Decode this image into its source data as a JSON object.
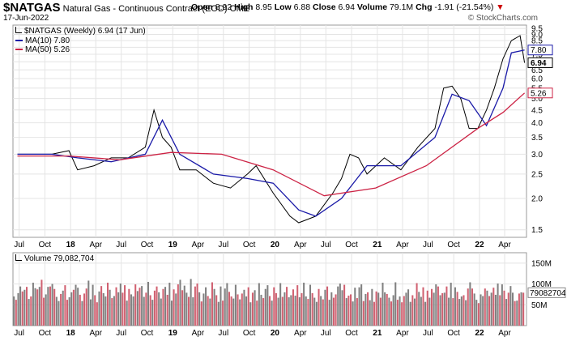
{
  "header": {
    "symbol": "$NATGAS",
    "description": "Natural Gas - Continuous Contract (EOD)",
    "exchange": "CME",
    "date": "17-Jun-2022",
    "watermark": "© StockCharts.com",
    "ohlc": {
      "open_label": "Open",
      "open": "8.92",
      "high_label": "High",
      "high": "8.95",
      "low_label": "Low",
      "low": "6.88",
      "close_label": "Close",
      "close": "6.94",
      "volume_label": "Volume",
      "volume": "79.1M",
      "chg_label": "Chg",
      "chg": "-1.91 (-21.54%)",
      "chg_arrow": "▼"
    }
  },
  "legend": {
    "price": "$NATGAS (Weekly) 6.94 (17 Jun)",
    "ma10": "MA(10) 7.80",
    "ma50": "MA(50) 5.26",
    "volume": "Volume 79,082,704"
  },
  "colors": {
    "price_line": "#000000",
    "ma10": "#1a1aa8",
    "ma50": "#cc2244",
    "vol_up": "#808080",
    "vol_down": "#d06070",
    "grid": "#e4e4e4",
    "chg_down": "#cc0000"
  },
  "chart_data": [
    {
      "type": "line",
      "title": "$NATGAS (Weekly)",
      "x_ticks": [
        "Jul",
        "Oct",
        "18",
        "Apr",
        "Jul",
        "Oct",
        "19",
        "Apr",
        "Jul",
        "Oct",
        "20",
        "Apr",
        "Jul",
        "Oct",
        "21",
        "Apr",
        "Jul",
        "Oct",
        "22",
        "Apr"
      ],
      "x_range": [
        "2017-06",
        "2022-06"
      ],
      "y_ticks": [
        "1.5",
        "2.0",
        "2.5",
        "3.0",
        "3.5",
        "4.0",
        "4.5",
        "5.0",
        "5.5",
        "6.0",
        "6.5",
        "7.0",
        "7.5",
        "8.0",
        "8.5",
        "9.0",
        "9.5"
      ],
      "ylim": [
        1.4,
        9.8
      ],
      "y_scale": "log",
      "grid": true,
      "last_value_labels": [
        "7.80",
        "6.94",
        "5.26"
      ],
      "series": [
        {
          "name": "$NATGAS (Weekly)",
          "x": [
            "2017-07",
            "2017-09",
            "2017-11",
            "2018-01",
            "2018-02",
            "2018-04",
            "2018-06",
            "2018-08",
            "2018-10",
            "2018-11",
            "2018-12",
            "2019-01",
            "2019-02",
            "2019-04",
            "2019-06",
            "2019-08",
            "2019-10",
            "2019-11",
            "2020-01",
            "2020-03",
            "2020-04",
            "2020-06",
            "2020-08",
            "2020-09",
            "2020-10",
            "2020-11",
            "2020-12",
            "2021-02",
            "2021-04",
            "2021-06",
            "2021-08",
            "2021-09",
            "2021-10",
            "2021-11",
            "2021-12",
            "2022-01",
            "2022-02",
            "2022-03",
            "2022-04",
            "2022-05",
            "2022-06",
            "2022-06-17"
          ],
          "values": [
            3.0,
            3.0,
            3.0,
            3.1,
            2.6,
            2.7,
            2.9,
            2.9,
            3.2,
            4.5,
            3.5,
            3.2,
            2.6,
            2.6,
            2.3,
            2.2,
            2.5,
            2.7,
            2.1,
            1.7,
            1.6,
            1.7,
            2.1,
            2.4,
            3.0,
            2.9,
            2.5,
            2.9,
            2.6,
            3.2,
            3.8,
            5.5,
            5.6,
            5.0,
            3.8,
            3.8,
            4.5,
            5.5,
            7.2,
            8.5,
            8.9,
            6.94
          ]
        },
        {
          "name": "MA(10)",
          "x": [
            "2017-07",
            "2017-11",
            "2018-02",
            "2018-06",
            "2018-10",
            "2018-12",
            "2019-02",
            "2019-06",
            "2019-10",
            "2020-01",
            "2020-04",
            "2020-06",
            "2020-09",
            "2020-12",
            "2021-04",
            "2021-08",
            "2021-10",
            "2021-12",
            "2022-02",
            "2022-04",
            "2022-05",
            "2022-06-17"
          ],
          "values": [
            3.0,
            3.0,
            2.9,
            2.8,
            3.0,
            4.1,
            3.0,
            2.5,
            2.4,
            2.3,
            1.8,
            1.7,
            2.0,
            2.7,
            2.7,
            3.5,
            5.2,
            4.9,
            3.9,
            5.5,
            7.6,
            7.8
          ]
        },
        {
          "name": "MA(50)",
          "x": [
            "2017-07",
            "2018-01",
            "2018-07",
            "2019-01",
            "2019-07",
            "2020-01",
            "2020-07",
            "2021-01",
            "2021-07",
            "2022-01",
            "2022-04",
            "2022-06-17"
          ],
          "values": [
            2.95,
            2.95,
            2.85,
            3.05,
            3.0,
            2.6,
            2.05,
            2.2,
            2.7,
            3.8,
            4.4,
            5.26
          ]
        }
      ]
    },
    {
      "type": "bar",
      "title": "Volume",
      "y_ticks": [
        "50M",
        "100M",
        "150M"
      ],
      "ylim": [
        0,
        175
      ],
      "units": "M",
      "last_value_label": "79082704",
      "x_range": [
        "2017-06",
        "2022-06"
      ],
      "values": [
        70,
        62,
        78,
        94,
        82,
        86,
        93,
        64,
        70,
        103,
        90,
        87,
        93,
        110,
        67,
        75,
        93,
        94,
        100,
        88,
        69,
        59,
        76,
        84,
        97,
        62,
        68,
        80,
        86,
        98,
        91,
        74,
        59,
        77,
        89,
        108,
        63,
        98,
        73,
        56,
        82,
        95,
        78,
        70,
        103,
        86,
        66,
        71,
        92,
        80,
        101,
        79,
        97,
        60,
        88,
        75,
        70,
        99,
        83,
        91,
        95,
        69,
        79,
        105,
        73,
        62,
        84,
        94,
        80,
        65,
        88,
        93,
        74,
        103,
        60,
        87,
        77,
        99,
        110,
        85,
        96,
        79,
        69,
        112,
        68,
        94,
        101,
        80,
        58,
        77,
        92,
        71,
        65,
        104,
        88,
        73,
        57,
        94,
        60,
        89,
        102,
        81,
        70,
        65,
        98,
        75,
        63,
        77,
        86,
        70,
        92,
        56,
        79,
        85,
        60,
        102,
        74,
        66,
        88,
        97,
        71,
        60,
        92,
        78,
        67,
        102,
        69,
        80,
        93,
        68,
        73,
        87,
        72,
        97,
        68,
        78,
        103,
        70,
        64,
        98,
        78,
        67,
        57,
        88,
        71,
        63,
        86,
        94,
        62,
        80,
        67,
        75,
        94,
        101,
        85,
        98,
        66,
        72,
        75,
        58,
        91,
        66,
        92,
        99,
        59,
        76,
        80,
        61,
        88,
        57,
        82,
        79,
        67,
        103,
        80,
        76,
        67,
        58,
        73,
        104,
        62,
        70,
        56,
        71,
        79,
        87,
        57,
        73,
        65,
        102,
        81,
        69,
        92,
        57,
        84,
        67,
        88,
        79,
        99,
        94,
        73,
        78,
        79,
        94,
        67,
        103,
        66,
        92,
        81,
        64,
        70,
        73,
        61,
        89,
        104,
        89,
        77,
        62,
        54,
        75,
        71,
        89,
        84,
        71,
        79,
        91,
        74,
        101,
        73,
        99,
        84,
        64,
        79,
        95,
        79,
        59,
        60,
        77,
        80,
        79
      ],
      "up": [
        true,
        false,
        true,
        true,
        false,
        true,
        false,
        true,
        false,
        true,
        true,
        false,
        true,
        false,
        false,
        true,
        true,
        false,
        true,
        false,
        true,
        true,
        false,
        true,
        false,
        false,
        true,
        true,
        false,
        true,
        true,
        false,
        true,
        false,
        false,
        true,
        true,
        true,
        false,
        false,
        true,
        false,
        true,
        true,
        false,
        true,
        false,
        true,
        false,
        true,
        true,
        false,
        false,
        true,
        false,
        true,
        true,
        false,
        true,
        false,
        true,
        true,
        false,
        true,
        false,
        true,
        false,
        false,
        true,
        true,
        false,
        true,
        false,
        true,
        true,
        false,
        true,
        false,
        true,
        false,
        true,
        true,
        false,
        true,
        true,
        false,
        false,
        true,
        false,
        true,
        true,
        false,
        true,
        false,
        true,
        false,
        true,
        true,
        false,
        true,
        true,
        false,
        false,
        true,
        true,
        false,
        true,
        false,
        true,
        true,
        false,
        true,
        false,
        true,
        false,
        true,
        true,
        false,
        true,
        true,
        false,
        true,
        false,
        false,
        true,
        true,
        false,
        true,
        false,
        true,
        true,
        false,
        true,
        false,
        true,
        false,
        true,
        true,
        false,
        true,
        false,
        true,
        true,
        false,
        true,
        false,
        true,
        false,
        true,
        true,
        false,
        false,
        true,
        true,
        true,
        false,
        true,
        false,
        false,
        true,
        true,
        false,
        true,
        true,
        false,
        true,
        false,
        true,
        true,
        false,
        false,
        true,
        false,
        true,
        true,
        false,
        true,
        false,
        true,
        true,
        false,
        true,
        false,
        false,
        true,
        true,
        true,
        false,
        true,
        false,
        true,
        true,
        false,
        true,
        false,
        true,
        false,
        true,
        true,
        false,
        true,
        false,
        true,
        false,
        true,
        true,
        false,
        true,
        false,
        true,
        true,
        false,
        true,
        false,
        true,
        false,
        true,
        true,
        false,
        true,
        true,
        false,
        true,
        false,
        true,
        false,
        true,
        true,
        false,
        true,
        false,
        true,
        false,
        true,
        true,
        false,
        true,
        false,
        true,
        false,
        true,
        true,
        false,
        true,
        false
      ]
    }
  ]
}
